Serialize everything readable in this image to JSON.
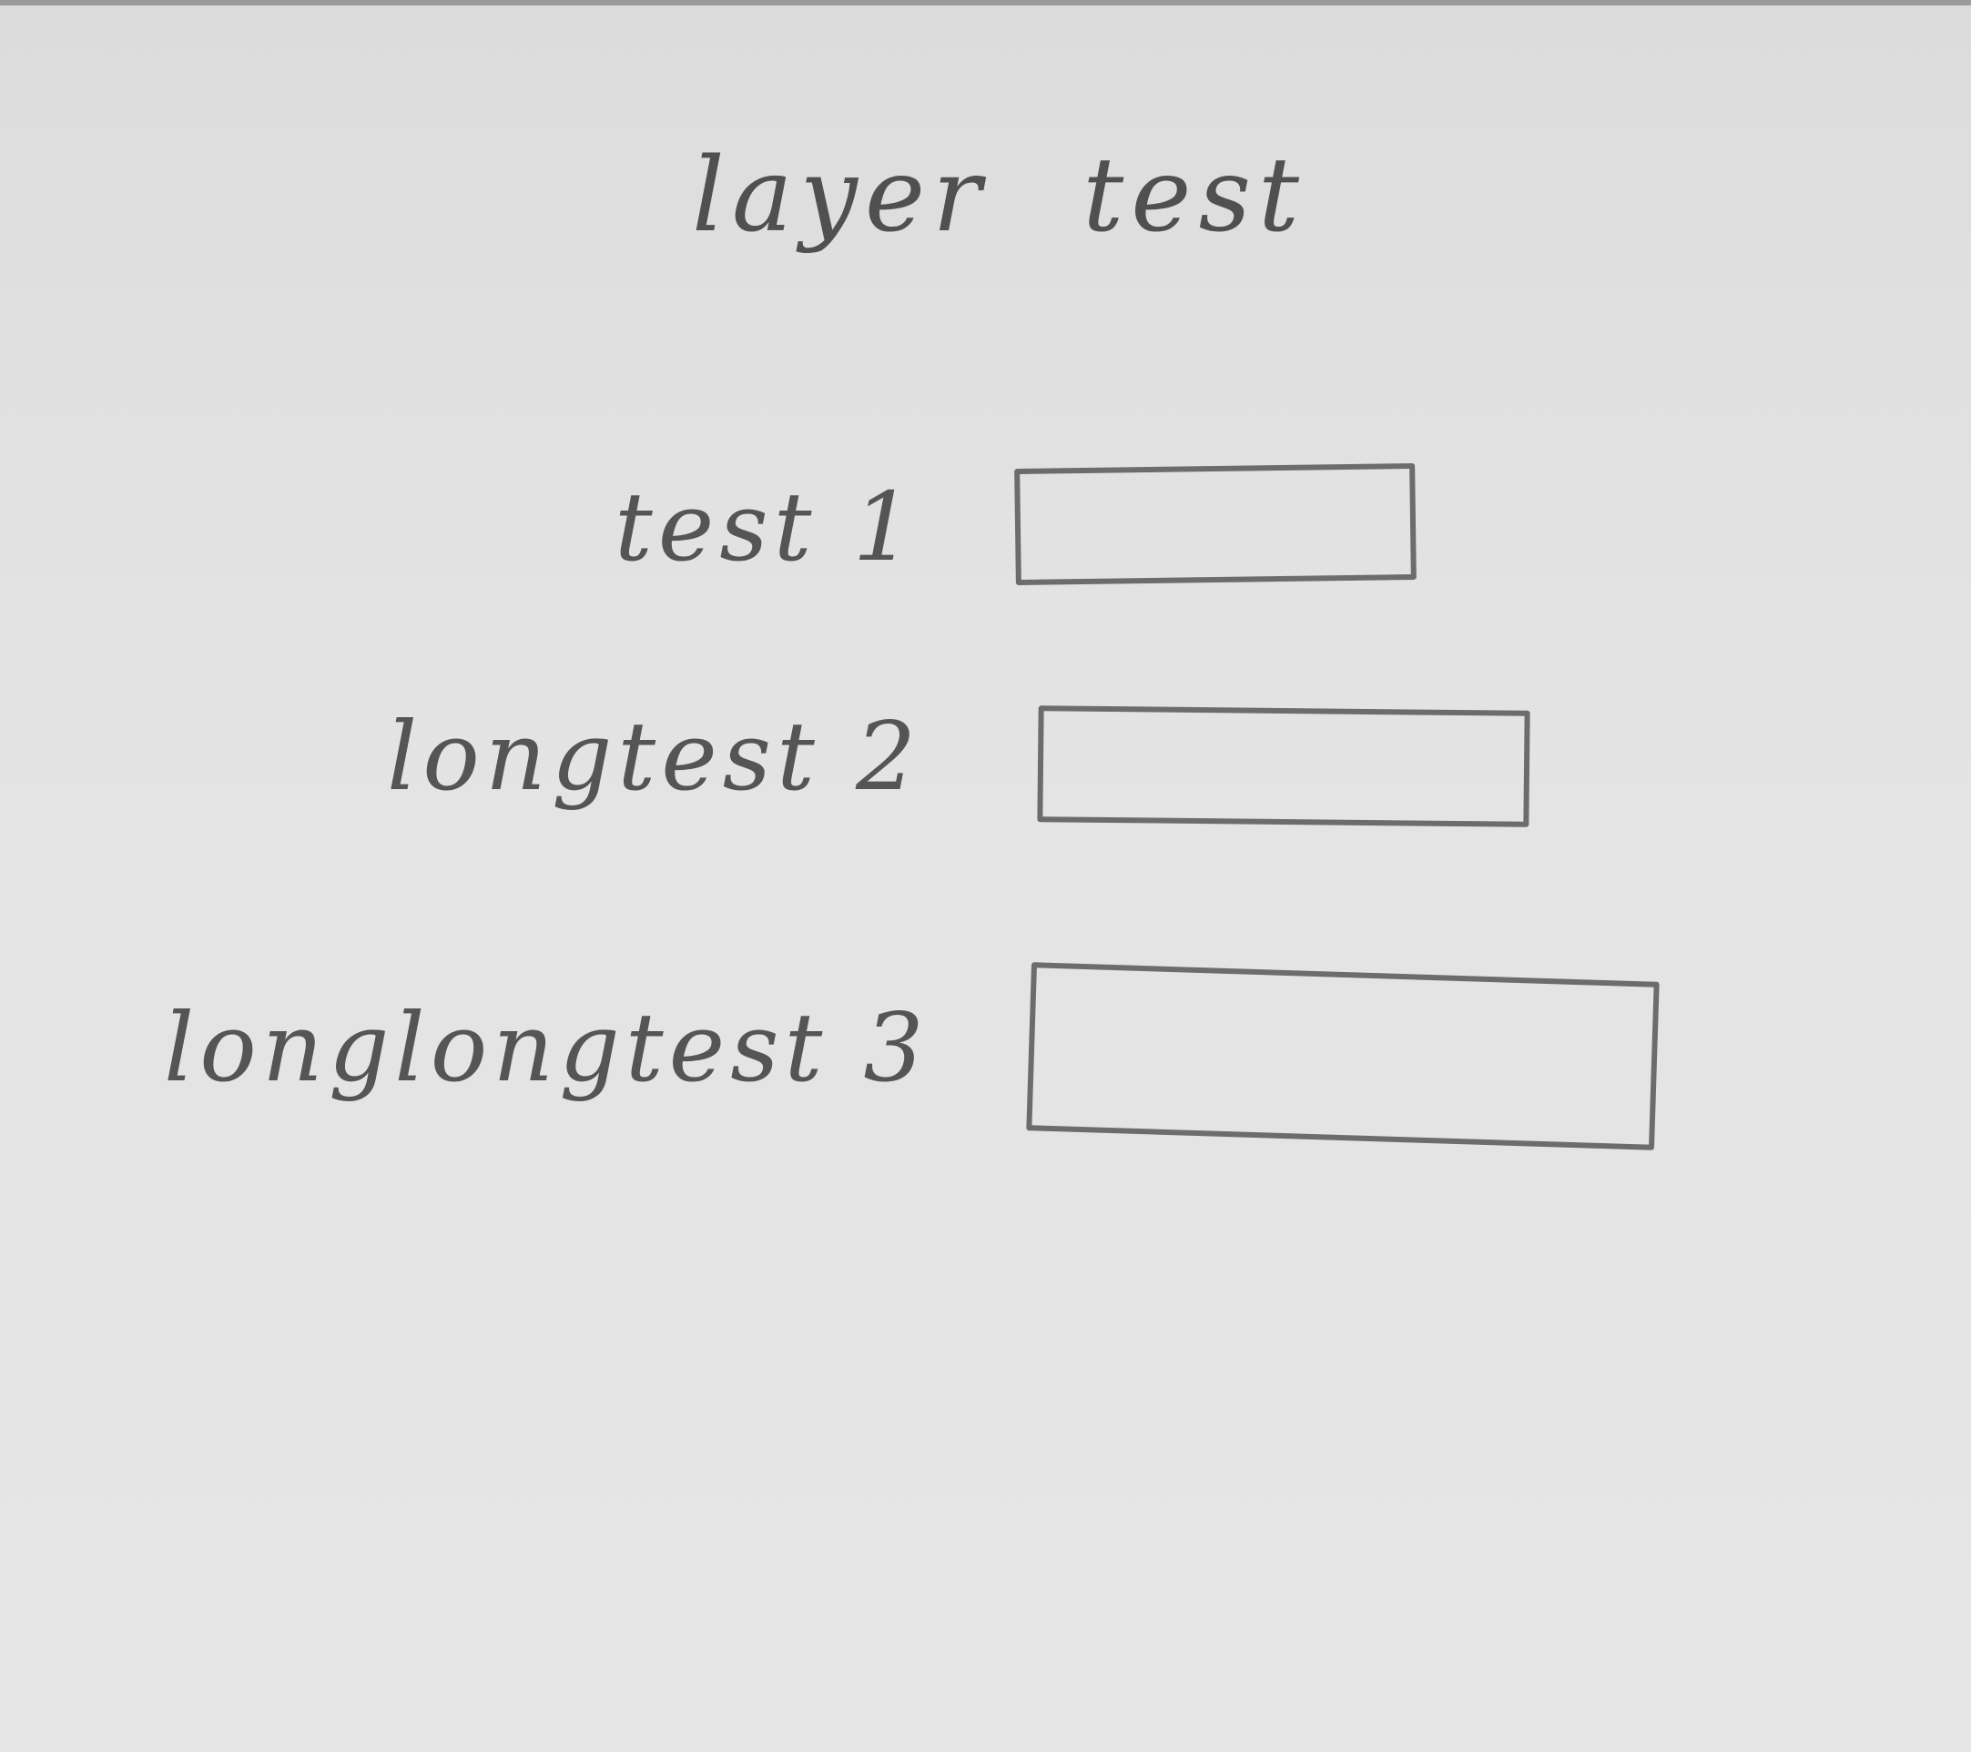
{
  "title": "layer test",
  "form": {
    "rows": [
      {
        "label": "test 1",
        "input_value": ""
      },
      {
        "label": "longtest 2",
        "input_value": ""
      },
      {
        "label": "longlongtest 3",
        "input_value": ""
      }
    ]
  },
  "colors": {
    "paper": "#e3e3e3",
    "pencil": "#5a5a5a"
  }
}
